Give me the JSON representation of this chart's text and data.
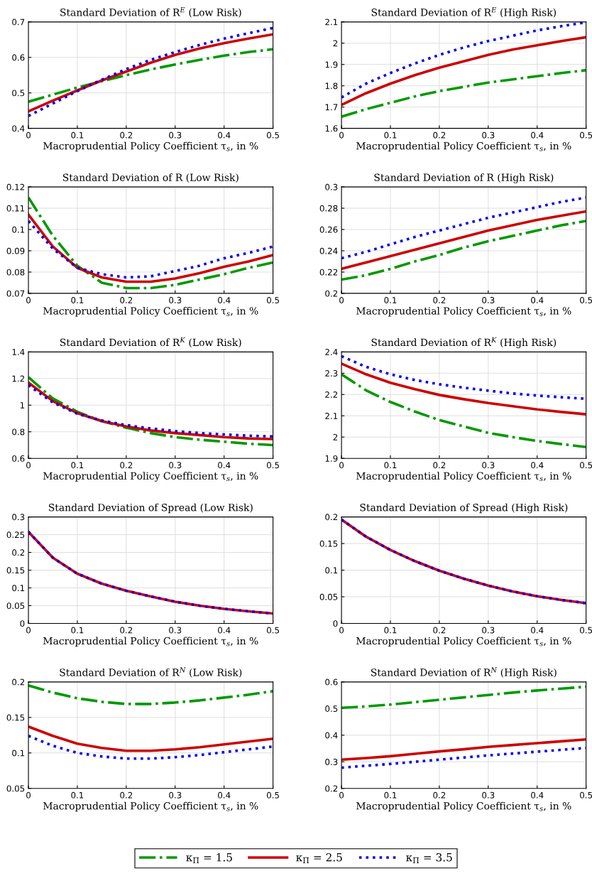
{
  "chart_data": [
    {
      "type": "line",
      "title": "Standard Deviation of R$^{E}$ (Low Risk)",
      "xlabel": "Macroprudential Policy Coefficient τ$_{s}$, in %",
      "x": [
        0,
        0.05,
        0.1,
        0.15,
        0.2,
        0.25,
        0.3,
        0.35,
        0.4,
        0.45,
        0.5
      ],
      "xlim": [
        0,
        0.5
      ],
      "xticks": [
        0,
        0.1,
        0.2,
        0.3,
        0.4,
        0.5
      ],
      "ylim": [
        0.4,
        0.7
      ],
      "yticks": [
        0.4,
        0.5,
        0.6,
        0.7
      ],
      "grid": true,
      "legend": "bottom",
      "series": [
        {
          "name": "κ$_{Π}$ = 1.5",
          "color": "#009900",
          "line_style": "dashdot",
          "values": [
            0.475,
            0.495,
            0.515,
            0.533,
            0.55,
            0.566,
            0.58,
            0.593,
            0.605,
            0.615,
            0.623
          ]
        },
        {
          "name": "κ$_{Π}$ = 2.5",
          "color": "#cc0000",
          "line_style": "solid",
          "values": [
            0.448,
            0.478,
            0.507,
            0.535,
            0.56,
            0.585,
            0.607,
            0.625,
            0.64,
            0.653,
            0.665
          ]
        },
        {
          "name": "κ$_{Π}$ = 3.5",
          "color": "#0000ee",
          "line_style": "dotted",
          "values": [
            0.435,
            0.47,
            0.505,
            0.537,
            0.567,
            0.593,
            0.615,
            0.635,
            0.653,
            0.668,
            0.683
          ]
        }
      ]
    },
    {
      "type": "line",
      "title": "Standard Deviation of R$^{E}$ (High Risk)",
      "xlabel": "Macroprudential Policy Coefficient τ$_{s}$, in %",
      "x": [
        0,
        0.05,
        0.1,
        0.15,
        0.2,
        0.25,
        0.3,
        0.35,
        0.4,
        0.45,
        0.5
      ],
      "xlim": [
        0,
        0.5
      ],
      "xticks": [
        0,
        0.1,
        0.2,
        0.3,
        0.4,
        0.5
      ],
      "ylim": [
        1.6,
        2.1
      ],
      "yticks": [
        1.6,
        1.7,
        1.8,
        1.9,
        2,
        2.1
      ],
      "grid": true,
      "series": [
        {
          "color": "#009900",
          "line_style": "dashdot",
          "values": [
            1.655,
            1.69,
            1.72,
            1.75,
            1.775,
            1.795,
            1.815,
            1.83,
            1.845,
            1.86,
            1.873
          ]
        },
        {
          "color": "#cc0000",
          "line_style": "solid",
          "values": [
            1.71,
            1.765,
            1.81,
            1.85,
            1.885,
            1.915,
            1.945,
            1.97,
            1.99,
            2.01,
            2.028
          ]
        },
        {
          "color": "#0000ee",
          "line_style": "dotted",
          "values": [
            1.745,
            1.81,
            1.86,
            1.905,
            1.945,
            1.98,
            2.01,
            2.035,
            2.06,
            2.08,
            2.098
          ]
        }
      ]
    },
    {
      "type": "line",
      "title": "Standard Deviation of R (Low Risk)",
      "xlabel": "Macroprudential Policy Coefficient τ$_{s}$, in %",
      "x": [
        0,
        0.05,
        0.1,
        0.15,
        0.2,
        0.25,
        0.3,
        0.35,
        0.4,
        0.45,
        0.5
      ],
      "xlim": [
        0,
        0.5
      ],
      "xticks": [
        0,
        0.1,
        0.2,
        0.3,
        0.4,
        0.5
      ],
      "ylim": [
        0.07,
        0.12
      ],
      "yticks": [
        0.07,
        0.08,
        0.09,
        0.1,
        0.11,
        0.12
      ],
      "grid": true,
      "series": [
        {
          "color": "#009900",
          "line_style": "dashdot",
          "values": [
            0.115,
            0.097,
            0.083,
            0.075,
            0.0725,
            0.0725,
            0.074,
            0.0765,
            0.079,
            0.082,
            0.0845
          ]
        },
        {
          "color": "#cc0000",
          "line_style": "solid",
          "values": [
            0.107,
            0.092,
            0.082,
            0.0775,
            0.0755,
            0.0755,
            0.077,
            0.0795,
            0.0825,
            0.085,
            0.088
          ]
        },
        {
          "color": "#0000ee",
          "line_style": "dotted",
          "values": [
            0.104,
            0.091,
            0.082,
            0.079,
            0.0775,
            0.078,
            0.0805,
            0.083,
            0.0865,
            0.089,
            0.092
          ]
        }
      ]
    },
    {
      "type": "line",
      "title": "Standard Deviation of R (High Risk)",
      "xlabel": "Macroprudential Policy Coefficient τ$_{s}$, in %",
      "x": [
        0,
        0.05,
        0.1,
        0.15,
        0.2,
        0.25,
        0.3,
        0.35,
        0.4,
        0.45,
        0.5
      ],
      "xlim": [
        0,
        0.5
      ],
      "xticks": [
        0,
        0.1,
        0.2,
        0.3,
        0.4,
        0.5
      ],
      "ylim": [
        0.2,
        0.3
      ],
      "yticks": [
        0.2,
        0.22,
        0.24,
        0.26,
        0.28,
        0.3
      ],
      "grid": true,
      "series": [
        {
          "color": "#009900",
          "line_style": "dashdot",
          "values": [
            0.213,
            0.217,
            0.223,
            0.23,
            0.236,
            0.243,
            0.249,
            0.254,
            0.259,
            0.264,
            0.268
          ]
        },
        {
          "color": "#cc0000",
          "line_style": "solid",
          "values": [
            0.223,
            0.229,
            0.235,
            0.241,
            0.247,
            0.253,
            0.259,
            0.264,
            0.269,
            0.273,
            0.277
          ]
        },
        {
          "color": "#0000ee",
          "line_style": "dotted",
          "values": [
            0.233,
            0.239,
            0.246,
            0.253,
            0.259,
            0.265,
            0.271,
            0.276,
            0.281,
            0.286,
            0.29
          ]
        }
      ]
    },
    {
      "type": "line",
      "title": "Standard Deviation of R$^{K}$ (Low Risk)",
      "xlabel": "Macroprudential Policy Coefficient τ$_{s}$, in %",
      "x": [
        0,
        0.05,
        0.1,
        0.15,
        0.2,
        0.25,
        0.3,
        0.35,
        0.4,
        0.45,
        0.5
      ],
      "xlim": [
        0,
        0.5
      ],
      "xticks": [
        0,
        0.1,
        0.2,
        0.3,
        0.4,
        0.5
      ],
      "ylim": [
        0.6,
        1.4
      ],
      "yticks": [
        0.6,
        0.8,
        1,
        1.2,
        1.4
      ],
      "grid": true,
      "series": [
        {
          "color": "#009900",
          "line_style": "dashdot",
          "values": [
            1.21,
            1.05,
            0.95,
            0.88,
            0.83,
            0.79,
            0.76,
            0.74,
            0.725,
            0.71,
            0.7
          ]
        },
        {
          "color": "#cc0000",
          "line_style": "solid",
          "values": [
            1.17,
            1.03,
            0.94,
            0.88,
            0.84,
            0.81,
            0.79,
            0.775,
            0.76,
            0.75,
            0.745
          ]
        },
        {
          "color": "#0000ee",
          "line_style": "dotted",
          "values": [
            1.15,
            1.02,
            0.935,
            0.885,
            0.85,
            0.825,
            0.805,
            0.79,
            0.78,
            0.77,
            0.765
          ]
        }
      ]
    },
    {
      "type": "line",
      "title": "Standard Deviation of R$^{K}$ (High Risk)",
      "xlabel": "Macroprudential Policy Coefficient τ$_{s}$, in %",
      "x": [
        0,
        0.05,
        0.1,
        0.15,
        0.2,
        0.25,
        0.3,
        0.35,
        0.4,
        0.45,
        0.5
      ],
      "xlim": [
        0,
        0.5
      ],
      "xticks": [
        0,
        0.1,
        0.2,
        0.3,
        0.4,
        0.5
      ],
      "ylim": [
        1.9,
        2.4
      ],
      "yticks": [
        1.9,
        2,
        2.1,
        2.2,
        2.3,
        2.4
      ],
      "grid": true,
      "series": [
        {
          "color": "#009900",
          "line_style": "dashdot",
          "values": [
            2.295,
            2.22,
            2.165,
            2.12,
            2.08,
            2.05,
            2.02,
            2.0,
            1.982,
            1.967,
            1.953
          ]
        },
        {
          "color": "#cc0000",
          "line_style": "solid",
          "values": [
            2.345,
            2.295,
            2.255,
            2.225,
            2.198,
            2.178,
            2.16,
            2.145,
            2.13,
            2.118,
            2.107
          ]
        },
        {
          "color": "#0000ee",
          "line_style": "dotted",
          "values": [
            2.38,
            2.33,
            2.295,
            2.268,
            2.248,
            2.232,
            2.218,
            2.205,
            2.195,
            2.187,
            2.18
          ]
        }
      ]
    },
    {
      "type": "line",
      "title": "Standard Deviation of Spread (Low Risk)",
      "xlabel": "Macroprudential Policy Coefficient τ$_{s}$, in %",
      "x": [
        0,
        0.05,
        0.1,
        0.15,
        0.2,
        0.25,
        0.3,
        0.35,
        0.4,
        0.45,
        0.5
      ],
      "xlim": [
        0,
        0.5
      ],
      "xticks": [
        0,
        0.1,
        0.2,
        0.3,
        0.4,
        0.5
      ],
      "ylim": [
        0,
        0.3
      ],
      "yticks": [
        0,
        0.05,
        0.1,
        0.15,
        0.2,
        0.25,
        0.3
      ],
      "grid": true,
      "series": [
        {
          "color": "#cc0000",
          "line_style": "solid",
          "values": [
            0.258,
            0.185,
            0.14,
            0.112,
            0.092,
            0.076,
            0.061,
            0.05,
            0.041,
            0.034,
            0.028
          ]
        },
        {
          "color": "#0000ee",
          "line_style": "dotted",
          "values": [
            0.258,
            0.185,
            0.14,
            0.112,
            0.092,
            0.076,
            0.061,
            0.05,
            0.041,
            0.034,
            0.028
          ]
        }
      ]
    },
    {
      "type": "line",
      "title": "Standard Deviation of Spread (High Risk)",
      "xlabel": "Macroprudential Policy Coefficient τ$_{s}$, in %",
      "x": [
        0,
        0.05,
        0.1,
        0.15,
        0.2,
        0.25,
        0.3,
        0.35,
        0.4,
        0.45,
        0.5
      ],
      "xlim": [
        0,
        0.5
      ],
      "xticks": [
        0,
        0.1,
        0.2,
        0.3,
        0.4,
        0.5
      ],
      "ylim": [
        0,
        0.2
      ],
      "yticks": [
        0,
        0.05,
        0.1,
        0.15,
        0.2
      ],
      "grid": true,
      "series": [
        {
          "color": "#cc0000",
          "line_style": "solid",
          "values": [
            0.195,
            0.163,
            0.138,
            0.117,
            0.099,
            0.084,
            0.071,
            0.06,
            0.051,
            0.044,
            0.038
          ]
        },
        {
          "color": "#0000ee",
          "line_style": "dotted",
          "values": [
            0.195,
            0.163,
            0.138,
            0.117,
            0.099,
            0.084,
            0.071,
            0.06,
            0.051,
            0.044,
            0.038
          ]
        }
      ]
    },
    {
      "type": "line",
      "title": "Standard Deviation of R$^{N}$ (Low Risk)",
      "xlabel": "Macroprudential Policy Coefficient τ$_{s}$, in %",
      "x": [
        0,
        0.05,
        0.1,
        0.15,
        0.2,
        0.25,
        0.3,
        0.35,
        0.4,
        0.45,
        0.5
      ],
      "xlim": [
        0,
        0.5
      ],
      "xticks": [
        0,
        0.1,
        0.2,
        0.3,
        0.4,
        0.5
      ],
      "ylim": [
        0.05,
        0.2
      ],
      "yticks": [
        0.05,
        0.1,
        0.15,
        0.2
      ],
      "grid": true,
      "series": [
        {
          "color": "#009900",
          "line_style": "dashdot",
          "values": [
            0.195,
            0.185,
            0.177,
            0.172,
            0.169,
            0.169,
            0.171,
            0.174,
            0.178,
            0.182,
            0.187
          ]
        },
        {
          "color": "#cc0000",
          "line_style": "solid",
          "values": [
            0.137,
            0.124,
            0.113,
            0.107,
            0.103,
            0.103,
            0.105,
            0.108,
            0.112,
            0.116,
            0.12
          ]
        },
        {
          "color": "#0000ee",
          "line_style": "dotted",
          "values": [
            0.124,
            0.11,
            0.1,
            0.095,
            0.092,
            0.092,
            0.094,
            0.097,
            0.101,
            0.105,
            0.109
          ]
        }
      ]
    },
    {
      "type": "line",
      "title": "Standard Deviation of R$^{N}$ (High Risk)",
      "xlabel": "Macroprudential Policy Coefficient τ$_{s}$, in %",
      "x": [
        0,
        0.05,
        0.1,
        0.15,
        0.2,
        0.25,
        0.3,
        0.35,
        0.4,
        0.45,
        0.5
      ],
      "xlim": [
        0,
        0.5
      ],
      "xticks": [
        0,
        0.1,
        0.2,
        0.3,
        0.4,
        0.5
      ],
      "ylim": [
        0.2,
        0.6
      ],
      "yticks": [
        0.2,
        0.3,
        0.4,
        0.5,
        0.6
      ],
      "grid": true,
      "series": [
        {
          "color": "#009900",
          "line_style": "dashdot",
          "values": [
            0.503,
            0.508,
            0.515,
            0.524,
            0.533,
            0.542,
            0.551,
            0.56,
            0.568,
            0.575,
            0.582
          ]
        },
        {
          "color": "#cc0000",
          "line_style": "solid",
          "values": [
            0.308,
            0.314,
            0.321,
            0.33,
            0.339,
            0.347,
            0.356,
            0.363,
            0.37,
            0.377,
            0.384
          ]
        },
        {
          "color": "#0000ee",
          "line_style": "dotted",
          "values": [
            0.278,
            0.285,
            0.292,
            0.3,
            0.308,
            0.316,
            0.324,
            0.331,
            0.338,
            0.345,
            0.352
          ]
        }
      ]
    }
  ]
}
